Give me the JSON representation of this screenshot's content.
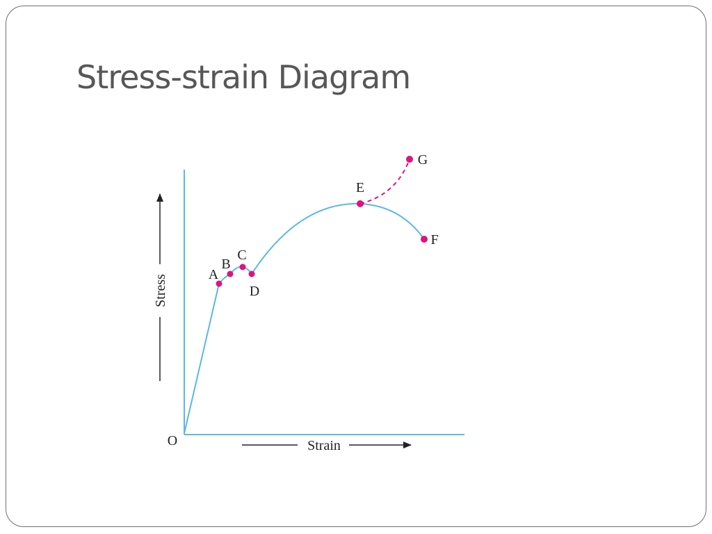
{
  "slide": {
    "title": "Stress-strain Diagram"
  },
  "diagram": {
    "origin_label": "O",
    "x_axis_label": "Strain",
    "y_axis_label": "Stress",
    "points": [
      {
        "id": "A",
        "label": "A"
      },
      {
        "id": "B",
        "label": "B"
      },
      {
        "id": "C",
        "label": "C"
      },
      {
        "id": "D",
        "label": "D"
      },
      {
        "id": "E",
        "label": "E"
      },
      {
        "id": "F",
        "label": "F"
      },
      {
        "id": "G",
        "label": "G"
      }
    ],
    "colors": {
      "curve": "#5ab8e4",
      "axis": "#5ab8e4",
      "points": "#e0127d",
      "dashed_curve": "#e0127d",
      "arrows": "#222222",
      "title": "#575757",
      "frame": "#6f6f6f"
    }
  }
}
